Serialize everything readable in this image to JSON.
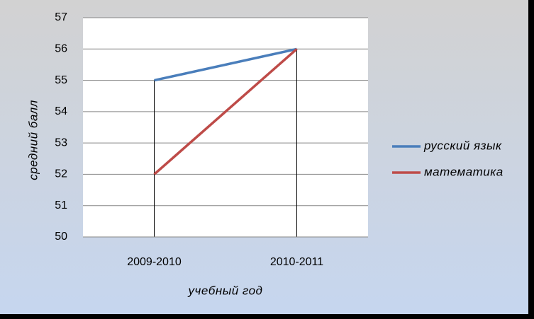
{
  "chart_data": {
    "type": "line",
    "categories": [
      "2009-2010",
      "2010-2011"
    ],
    "series": [
      {
        "name": "русский язык",
        "color": "#4a7ebb",
        "values": [
          55,
          56
        ]
      },
      {
        "name": "математика",
        "color": "#be4b48",
        "values": [
          52,
          56
        ]
      }
    ],
    "ylim": [
      50,
      57
    ],
    "yticks": [
      50,
      51,
      52,
      53,
      54,
      55,
      56,
      57
    ],
    "grid": true,
    "y_label": "средний балл",
    "x_label": "учебный год",
    "legend": "right"
  }
}
